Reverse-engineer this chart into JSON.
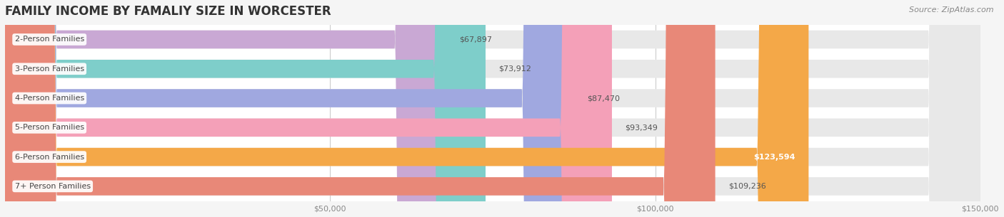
{
  "title": "FAMILY INCOME BY FAMALIY SIZE IN WORCESTER",
  "source": "Source: ZipAtlas.com",
  "categories": [
    "2-Person Families",
    "3-Person Families",
    "4-Person Families",
    "5-Person Families",
    "6-Person Families",
    "7+ Person Families"
  ],
  "values": [
    67897,
    73912,
    87470,
    93349,
    123594,
    109236
  ],
  "bar_colors": [
    "#c9a8d4",
    "#7ececa",
    "#a0a8e0",
    "#f4a0b8",
    "#f4a848",
    "#e88878"
  ],
  "label_colors": [
    "#888888",
    "#888888",
    "#888888",
    "#888888",
    "#ffffff",
    "#888888"
  ],
  "value_labels": [
    "$67,897",
    "$73,912",
    "$87,470",
    "$93,349",
    "$123,594",
    "$109,236"
  ],
  "background_color": "#f5f5f5",
  "bar_background": "#e8e8e8",
  "xlim": [
    0,
    150000
  ],
  "xticks": [
    0,
    50000,
    100000,
    150000
  ],
  "xtick_labels": [
    "",
    "$50,000",
    "$100,000",
    "$150,000"
  ],
  "title_fontsize": 12,
  "bar_height": 0.62,
  "figsize": [
    14.06,
    3.05
  ]
}
